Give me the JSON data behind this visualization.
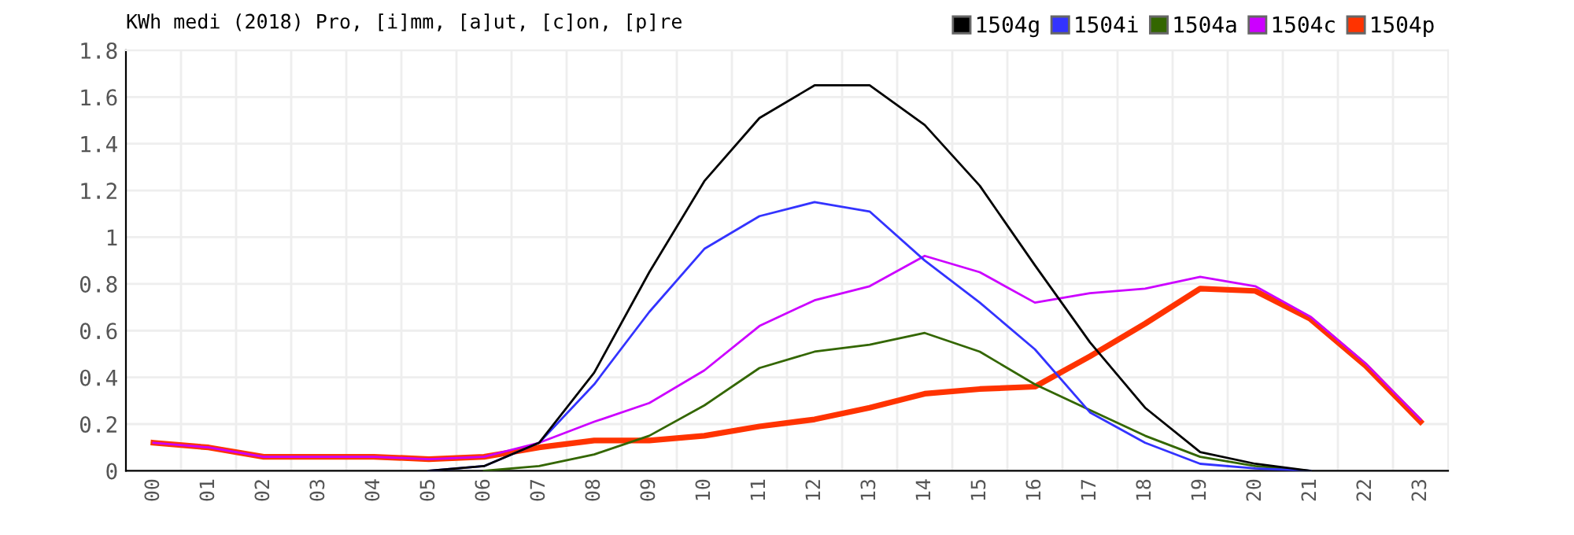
{
  "chart_data": {
    "type": "line",
    "title": "KWh medi (2018) Pro, [i]mm, [a]ut, [c]on, [p]re",
    "categories": [
      "00",
      "01",
      "02",
      "03",
      "04",
      "05",
      "06",
      "07",
      "08",
      "09",
      "10",
      "11",
      "12",
      "13",
      "14",
      "15",
      "16",
      "17",
      "18",
      "19",
      "20",
      "21",
      "22",
      "23"
    ],
    "series": [
      {
        "name": "1504g",
        "color": "#000000",
        "values": [
          null,
          null,
          null,
          null,
          null,
          0,
          0.02,
          0.12,
          0.42,
          0.85,
          1.24,
          1.51,
          1.65,
          1.65,
          1.48,
          1.22,
          0.88,
          0.55,
          0.27,
          0.08,
          0.03,
          0,
          null,
          null
        ]
      },
      {
        "name": "1504i",
        "color": "#3333ff",
        "values": [
          null,
          null,
          null,
          null,
          null,
          0,
          0.02,
          0.12,
          0.37,
          0.68,
          0.95,
          1.09,
          1.15,
          1.11,
          0.9,
          0.72,
          0.52,
          0.25,
          0.12,
          0.03,
          0.01,
          0,
          null,
          null
        ]
      },
      {
        "name": "1504a",
        "color": "#336600",
        "values": [
          null,
          null,
          null,
          null,
          null,
          null,
          0,
          0.02,
          0.07,
          0.15,
          0.28,
          0.44,
          0.51,
          0.54,
          0.59,
          0.51,
          0.37,
          0.26,
          0.15,
          0.06,
          0.02,
          0,
          null,
          null
        ]
      },
      {
        "name": "1504c",
        "color": "#cc00ff",
        "values": [
          0.12,
          0.1,
          0.06,
          0.06,
          0.06,
          0.05,
          0.06,
          0.12,
          0.21,
          0.29,
          0.43,
          0.62,
          0.73,
          0.79,
          0.92,
          0.85,
          0.72,
          0.76,
          0.78,
          0.83,
          0.79,
          0.66,
          0.46,
          0.22
        ]
      },
      {
        "name": "1504p",
        "color": "#ff3300",
        "values": [
          0.12,
          0.1,
          0.06,
          0.06,
          0.06,
          0.05,
          0.06,
          0.1,
          0.13,
          0.13,
          0.15,
          0.19,
          0.22,
          0.27,
          0.33,
          0.35,
          0.36,
          0.49,
          0.63,
          0.78,
          0.77,
          0.65,
          0.45,
          0.21
        ]
      }
    ],
    "ylim": [
      0,
      1.8
    ],
    "yticks": [
      0,
      0.2,
      0.4,
      0.6,
      0.8,
      1,
      1.2,
      1.4,
      1.6,
      1.8
    ],
    "grid": true,
    "legend": "top right",
    "marker": "none",
    "line_style": "solid"
  }
}
